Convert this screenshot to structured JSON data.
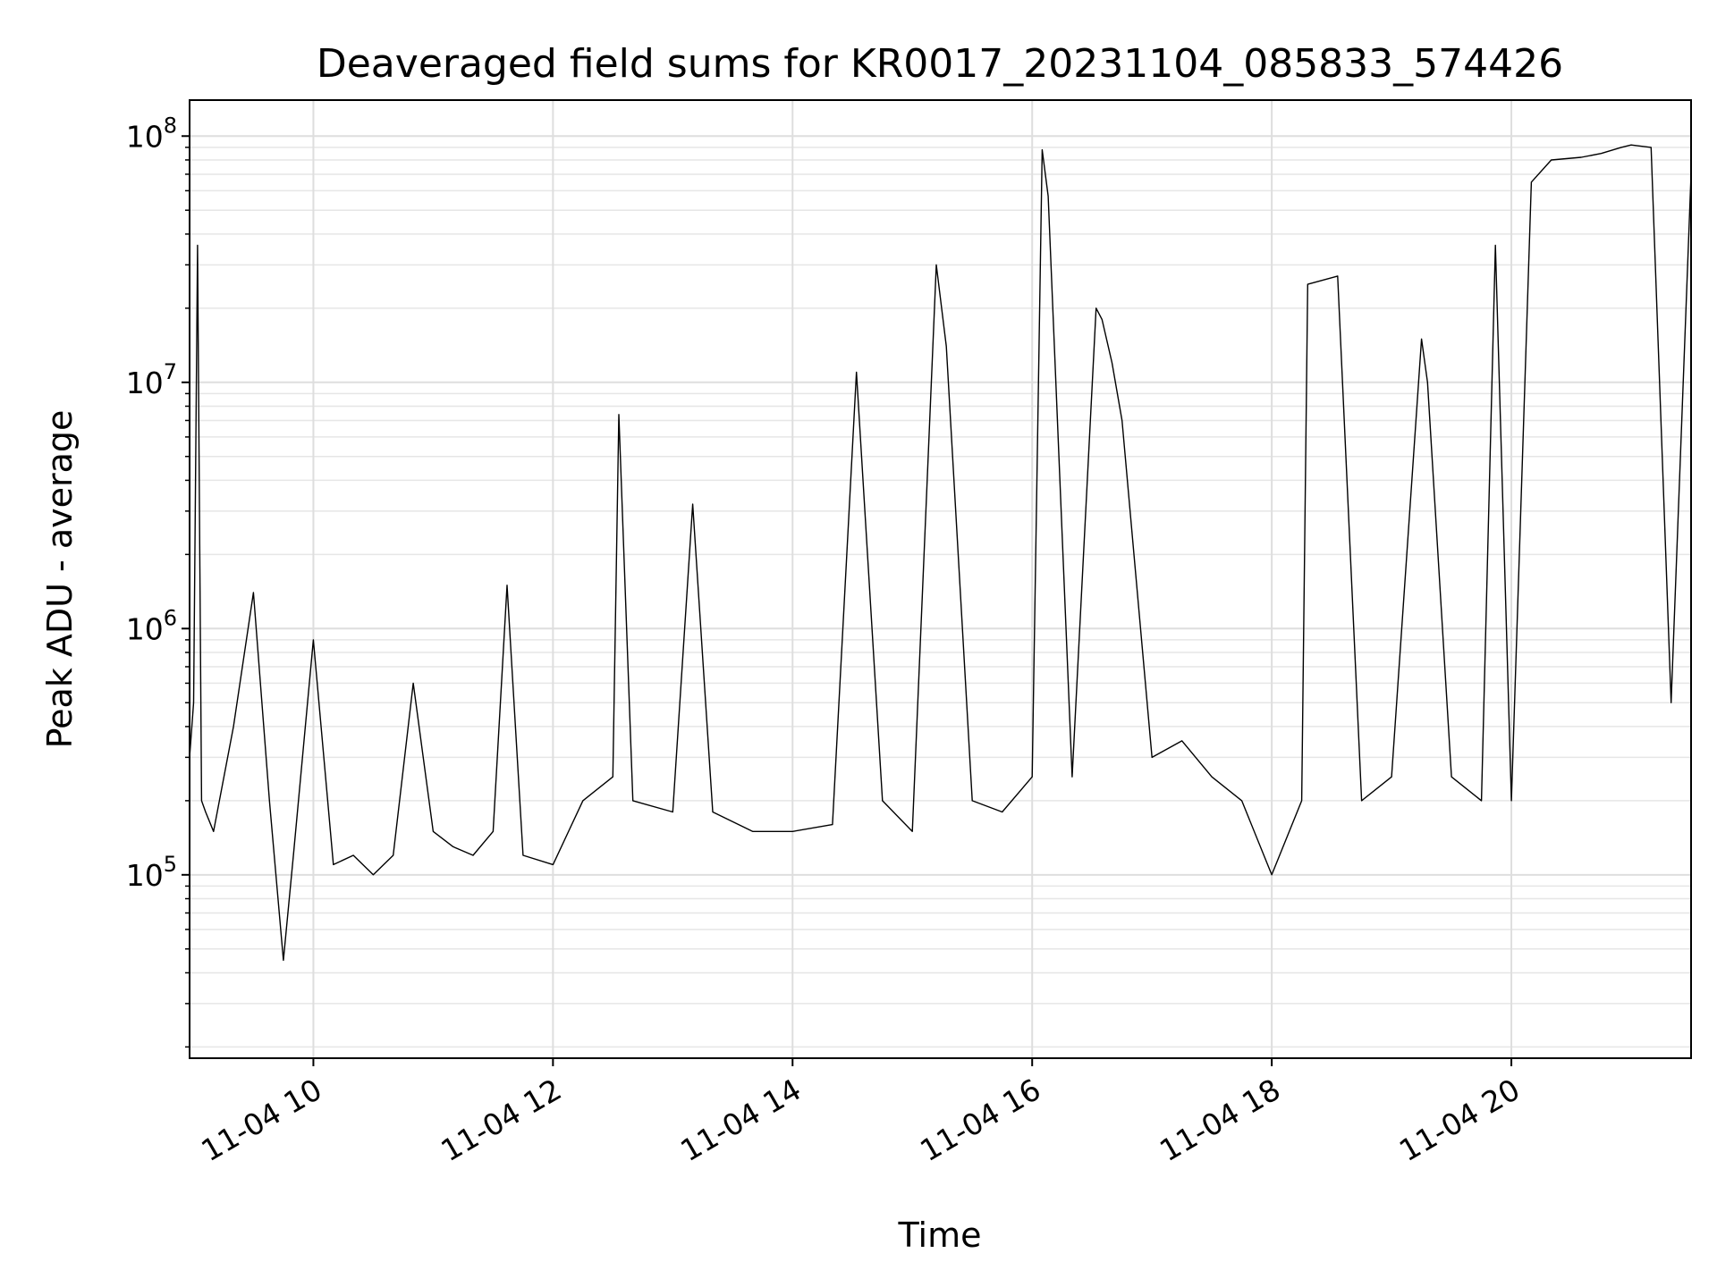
{
  "chart_data": {
    "type": "line",
    "title": "Deaveraged field sums for KR0017_20231104_085833_574426",
    "xlabel": "Time",
    "ylabel": "Peak ADU - average",
    "xlim": [
      "2023-11-04 08:58",
      "2023-11-04 21:30"
    ],
    "ylim": [
      18000,
      140000000
    ],
    "yscale": "log",
    "grid": "on (major and minor)",
    "x_tick_labels": [
      "11-04 10",
      "11-04 12",
      "11-04 14",
      "11-04 16",
      "11-04 18",
      "11-04 20"
    ],
    "x_tick_times": [
      "2023-11-04 10:00",
      "2023-11-04 12:00",
      "2023-11-04 14:00",
      "2023-11-04 16:00",
      "2023-11-04 18:00",
      "2023-11-04 20:00"
    ],
    "y_tick_labels": [
      {
        "base": "10",
        "exp": "5",
        "value": 100000
      },
      {
        "base": "10",
        "exp": "6",
        "value": 1000000
      },
      {
        "base": "10",
        "exp": "7",
        "value": 10000000
      },
      {
        "base": "10",
        "exp": "8",
        "value": 100000000
      }
    ],
    "line_color": "#000000",
    "series": [
      {
        "x": [
          "2023-11-04 08:58",
          "2023-11-04 09:00",
          "2023-11-04 09:02",
          "2023-11-04 09:04",
          "2023-11-04 09:06",
          "2023-11-04 09:10",
          "2023-11-04 09:20",
          "2023-11-04 09:30",
          "2023-11-04 09:38",
          "2023-11-04 09:45",
          "2023-11-04 09:50",
          "2023-11-04 10:00",
          "2023-11-04 10:10",
          "2023-11-04 10:20",
          "2023-11-04 10:30",
          "2023-11-04 10:40",
          "2023-11-04 10:50",
          "2023-11-04 11:00",
          "2023-11-04 11:10",
          "2023-11-04 11:20",
          "2023-11-04 11:30",
          "2023-11-04 11:37",
          "2023-11-04 11:45",
          "2023-11-04 12:00",
          "2023-11-04 12:15",
          "2023-11-04 12:30",
          "2023-11-04 12:33",
          "2023-11-04 12:40",
          "2023-11-04 13:00",
          "2023-11-04 13:10",
          "2023-11-04 13:20",
          "2023-11-04 13:40",
          "2023-11-04 14:00",
          "2023-11-04 14:20",
          "2023-11-04 14:32",
          "2023-11-04 14:45",
          "2023-11-04 15:00",
          "2023-11-04 15:12",
          "2023-11-04 15:17",
          "2023-11-04 15:30",
          "2023-11-04 15:45",
          "2023-11-04 16:00",
          "2023-11-04 16:05",
          "2023-11-04 16:08",
          "2023-11-04 16:20",
          "2023-11-04 16:32",
          "2023-11-04 16:35",
          "2023-11-04 16:40",
          "2023-11-04 16:45",
          "2023-11-04 17:00",
          "2023-11-04 17:15",
          "2023-11-04 17:30",
          "2023-11-04 17:45",
          "2023-11-04 18:00",
          "2023-11-04 18:15",
          "2023-11-04 18:18",
          "2023-11-04 18:33",
          "2023-11-04 18:45",
          "2023-11-04 19:00",
          "2023-11-04 19:15",
          "2023-11-04 19:18",
          "2023-11-04 19:30",
          "2023-11-04 19:45",
          "2023-11-04 19:52",
          "2023-11-04 20:00",
          "2023-11-04 20:10",
          "2023-11-04 20:20",
          "2023-11-04 20:35",
          "2023-11-04 20:45",
          "2023-11-04 20:55",
          "2023-11-04 21:00",
          "2023-11-04 21:10",
          "2023-11-04 21:20",
          "2023-11-04 21:30"
        ],
        "y": [
          300000,
          500000,
          36000000,
          200000,
          180000,
          150000,
          400000,
          1400000,
          200000,
          45000,
          120000,
          900000,
          110000,
          120000,
          100000,
          120000,
          600000,
          150000,
          130000,
          120000,
          150000,
          1500000,
          120000,
          110000,
          200000,
          250000,
          7400000,
          200000,
          180000,
          3200000,
          180000,
          150000,
          150000,
          160000,
          11000000,
          200000,
          150000,
          30000000,
          14000000,
          200000,
          180000,
          250000,
          88000000,
          57000000,
          250000,
          20000000,
          18000000,
          12000000,
          7000000,
          300000,
          350000,
          250000,
          200000,
          100000,
          200000,
          25000000,
          27000000,
          200000,
          250000,
          15000000,
          10000000,
          250000,
          200000,
          36000000,
          200000,
          65000000,
          80000000,
          82000000,
          85000000,
          90000000,
          92000000,
          90000000,
          500000,
          70000000
        ]
      }
    ]
  }
}
